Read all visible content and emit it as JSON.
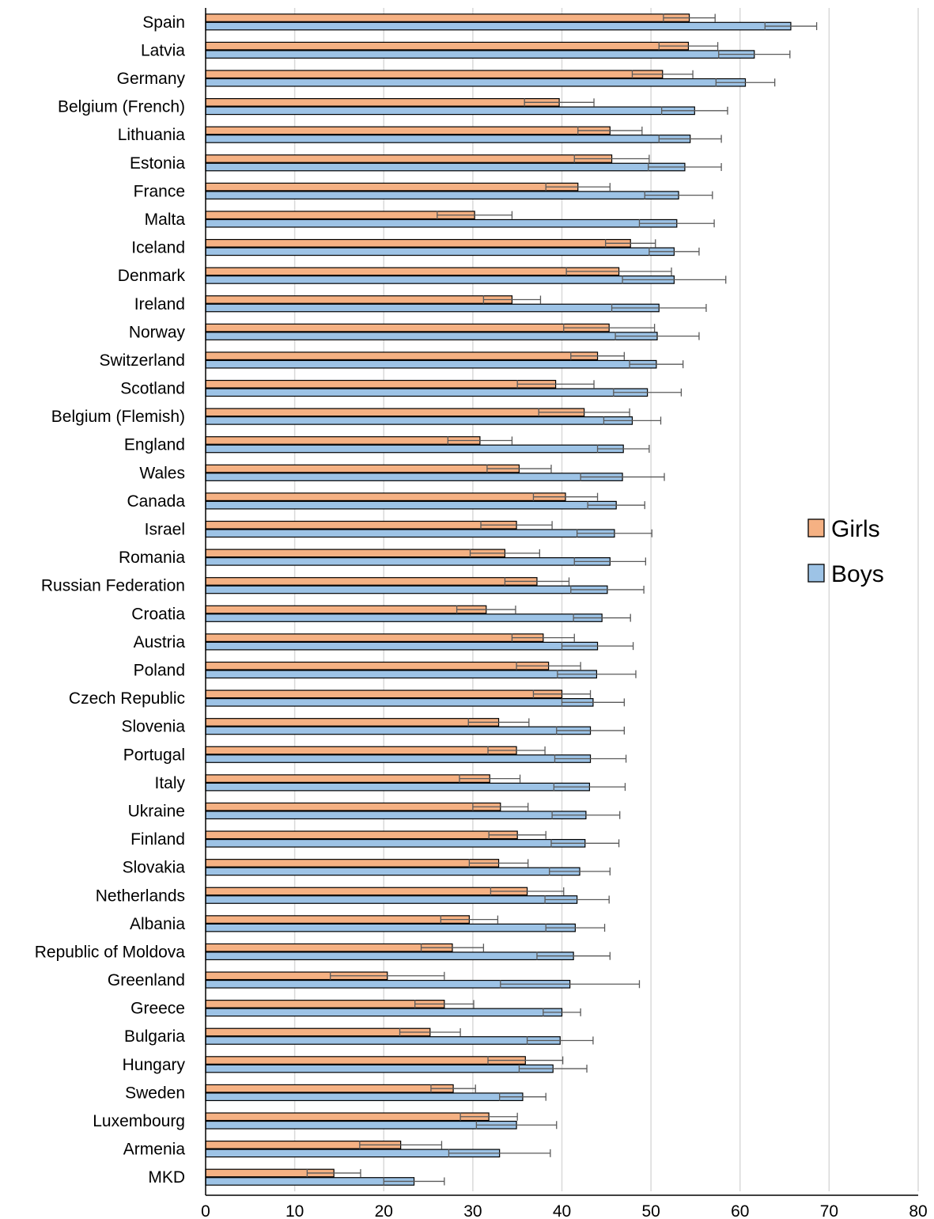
{
  "chart_data": {
    "type": "bar",
    "orientation": "horizontal",
    "title": "",
    "xlabel": "",
    "ylabel": "",
    "xlim": [
      0,
      80
    ],
    "x_ticks": [
      0,
      10,
      20,
      30,
      40,
      50,
      60,
      70,
      80
    ],
    "grid": "vertical",
    "legend_position": "right",
    "categories": [
      "Spain",
      "Latvia",
      "Germany",
      "Belgium (French)",
      "Lithuania",
      "Estonia",
      "France",
      "Malta",
      "Iceland",
      "Denmark",
      "Ireland",
      "Norway",
      "Switzerland",
      "Scotland",
      "Belgium (Flemish)",
      "England",
      "Wales",
      "Canada",
      "Israel",
      "Romania",
      "Russian Federation",
      "Croatia",
      "Austria",
      "Poland",
      "Czech Republic",
      "Slovenia",
      "Portugal",
      "Italy",
      "Ukraine",
      "Finland",
      "Slovakia",
      "Netherlands",
      "Albania",
      "Republic of Moldova",
      "Greenland",
      "Greece",
      "Bulgaria",
      "Hungary",
      "Sweden",
      "Luxembourg",
      "Armenia",
      "MKD"
    ],
    "series": [
      {
        "name": "Girls",
        "color": "#f5b183",
        "values": [
          54.3,
          54.2,
          51.3,
          39.7,
          45.4,
          45.6,
          41.8,
          30.2,
          47.7,
          46.4,
          34.4,
          45.3,
          44.0,
          39.3,
          42.5,
          30.8,
          35.2,
          40.4,
          34.9,
          33.6,
          37.2,
          31.5,
          37.9,
          38.5,
          40.0,
          32.9,
          34.9,
          31.9,
          33.1,
          35.0,
          32.9,
          36.1,
          29.6,
          27.7,
          20.4,
          26.8,
          25.2,
          35.9,
          27.8,
          31.8,
          21.9,
          14.4
        ],
        "errors": [
          2.9,
          3.3,
          3.4,
          3.9,
          3.6,
          4.2,
          3.6,
          4.2,
          2.8,
          5.9,
          3.2,
          5.1,
          3.0,
          4.3,
          5.1,
          3.6,
          3.6,
          3.6,
          4.0,
          3.9,
          3.6,
          3.3,
          3.5,
          3.6,
          3.2,
          3.4,
          3.2,
          3.4,
          3.1,
          3.2,
          3.3,
          4.1,
          3.2,
          3.5,
          6.4,
          3.3,
          3.4,
          4.2,
          2.5,
          3.2,
          4.6,
          3.0
        ]
      },
      {
        "name": "Boys",
        "color": "#9dc3e6",
        "values": [
          65.7,
          61.6,
          60.6,
          54.9,
          54.4,
          53.8,
          53.1,
          52.9,
          52.6,
          52.6,
          50.9,
          50.7,
          50.6,
          49.6,
          47.9,
          46.9,
          46.8,
          46.1,
          45.9,
          45.4,
          45.1,
          44.5,
          44.0,
          43.9,
          43.5,
          43.2,
          43.2,
          43.1,
          42.7,
          42.6,
          42.0,
          41.7,
          41.5,
          41.3,
          40.9,
          40.0,
          39.8,
          39.0,
          35.6,
          34.9,
          33.0,
          23.4
        ],
        "errors": [
          2.9,
          4.0,
          3.3,
          3.7,
          3.5,
          4.1,
          3.8,
          4.2,
          2.8,
          5.8,
          5.3,
          4.7,
          3.0,
          3.8,
          3.2,
          2.9,
          4.7,
          3.2,
          4.2,
          4.0,
          4.1,
          3.2,
          4.0,
          4.4,
          3.5,
          3.8,
          4.0,
          4.0,
          3.8,
          3.8,
          3.4,
          3.6,
          3.3,
          4.1,
          7.8,
          2.1,
          3.7,
          3.8,
          2.6,
          4.5,
          5.7,
          3.4
        ]
      }
    ]
  }
}
